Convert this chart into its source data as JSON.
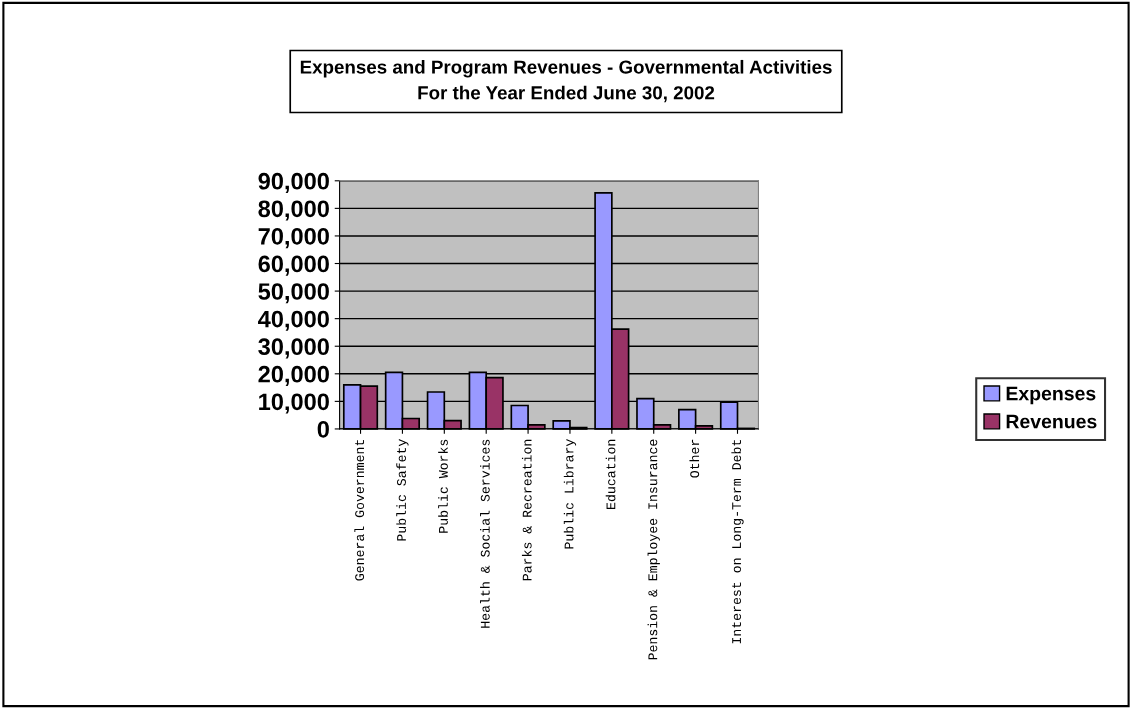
{
  "chart_data": {
    "type": "bar",
    "title": "Expenses and Program Revenues - Governmental Activities\nFor the Year Ended June 30, 2002",
    "categories": [
      "General Government",
      "Public Safety",
      "Public Works",
      "Health & Social Services",
      "Parks & Recreation",
      "Public Library",
      "Education",
      "Pension & Employee Insurance",
      "Other",
      "Interest on Long-Term Debt"
    ],
    "series": [
      {
        "name": "Expenses",
        "color": "#9999ff",
        "values": [
          16000,
          20500,
          13400,
          20500,
          8500,
          2900,
          85600,
          11000,
          7000,
          9700
        ]
      },
      {
        "name": "Revenues",
        "color": "#993366",
        "values": [
          15500,
          3800,
          3000,
          18600,
          1500,
          500,
          36200,
          1500,
          1100,
          200
        ]
      }
    ],
    "ylim": [
      0,
      90000
    ],
    "yticks": [
      {
        "value": 0,
        "label": "0"
      },
      {
        "value": 10000,
        "label": "10,000"
      },
      {
        "value": 20000,
        "label": "20,000"
      },
      {
        "value": 30000,
        "label": "30,000"
      },
      {
        "value": 40000,
        "label": "40,000"
      },
      {
        "value": 50000,
        "label": "50,000"
      },
      {
        "value": 60000,
        "label": "60,000"
      },
      {
        "value": 70000,
        "label": "70,000"
      },
      {
        "value": 80000,
        "label": "80,000"
      },
      {
        "value": 90000,
        "label": "90,000"
      }
    ],
    "grid": "y",
    "legend": "right"
  }
}
